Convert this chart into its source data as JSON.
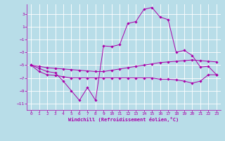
{
  "background_color": "#b8dde8",
  "grid_color": "#ffffff",
  "line_color": "#aa00aa",
  "xlabel": "Windchill (Refroidissement éolien,°C)",
  "xlim": [
    -0.5,
    23.5
  ],
  "ylim": [
    -12,
    4.5
  ],
  "yticks": [
    -11,
    -9,
    -7,
    -5,
    -3,
    -1,
    1,
    3
  ],
  "xticks": [
    0,
    1,
    2,
    3,
    4,
    5,
    6,
    7,
    8,
    9,
    10,
    11,
    12,
    13,
    14,
    15,
    16,
    17,
    18,
    19,
    20,
    21,
    22,
    23
  ],
  "series": [
    {
      "x": [
        0,
        1,
        2,
        3,
        4,
        5,
        6,
        7,
        8,
        9,
        10,
        11,
        12,
        13,
        14,
        15,
        16,
        17,
        18,
        19,
        20,
        21,
        22,
        23
      ],
      "y": [
        -5,
        -5.5,
        -6,
        -6.2,
        -7.5,
        -9,
        -10.5,
        -8.5,
        -10.5,
        -2,
        -2.1,
        -1.8,
        1.5,
        1.8,
        3.7,
        4.0,
        2.5,
        2.1,
        -3,
        -2.7,
        -3.5,
        -5.3,
        -5.2,
        -6.5
      ]
    },
    {
      "x": [
        0,
        1,
        2,
        3,
        4,
        5,
        6,
        7,
        8,
        9,
        10,
        11,
        12,
        13,
        14,
        15,
        16,
        17,
        18,
        19,
        20,
        21,
        22,
        23
      ],
      "y": [
        -5,
        -5.2,
        -5.4,
        -5.5,
        -5.6,
        -5.7,
        -5.8,
        -5.9,
        -6.0,
        -6.0,
        -5.8,
        -5.6,
        -5.4,
        -5.2,
        -5.0,
        -4.8,
        -4.6,
        -4.5,
        -4.4,
        -4.3,
        -4.2,
        -4.3,
        -4.4,
        -4.5
      ]
    },
    {
      "x": [
        0,
        1,
        2,
        3,
        4,
        5,
        6,
        7,
        8,
        9,
        10,
        11,
        12,
        13,
        14,
        15,
        16,
        17,
        18,
        19,
        20,
        21,
        22,
        23
      ],
      "y": [
        -5,
        -6.0,
        -6.5,
        -6.6,
        -6.8,
        -7.0,
        -7.0,
        -7.0,
        -7.0,
        -7.0,
        -7.0,
        -7.0,
        -7.0,
        -7.0,
        -7.0,
        -7.0,
        -7.2,
        -7.2,
        -7.3,
        -7.5,
        -7.8,
        -7.5,
        -6.5,
        -6.5
      ]
    }
  ]
}
